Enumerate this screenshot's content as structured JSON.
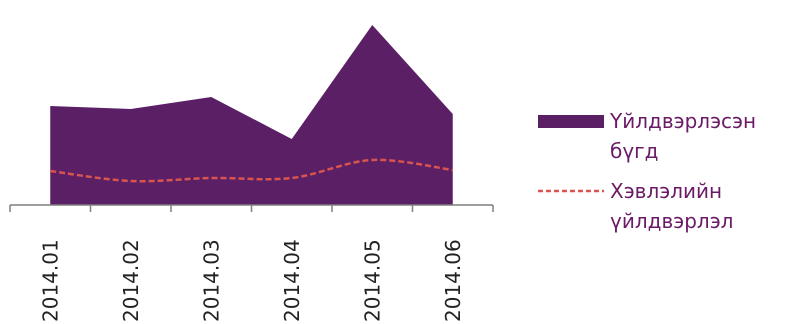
{
  "colors": {
    "area": "#5b1f66",
    "line": "#d9534f",
    "axis": "#7f7f7f",
    "legend_text": "#6a1a66"
  },
  "chart_data": {
    "type": "area",
    "categories": [
      "2014.01",
      "2014.02",
      "2014.03",
      "2014.04",
      "2014.05",
      "2014.06"
    ],
    "series": [
      {
        "name": "Үйлдвэрлэсэн бүгд",
        "type": "area",
        "values": [
          99,
          96,
          108,
          66,
          180,
          91
        ]
      },
      {
        "name": "Хэвлэлийн үйлдвэрлэл",
        "type": "line",
        "values": [
          34,
          24,
          27,
          27,
          45,
          35
        ]
      }
    ],
    "ylim": [
      0,
      200
    ],
    "grid": false,
    "legend_position": "right"
  },
  "legend": {
    "items": [
      {
        "label": "Үйлдвэрлэсэн бүгд"
      },
      {
        "label": "Хэвлэлийн үйлдвэрлэл"
      }
    ]
  }
}
